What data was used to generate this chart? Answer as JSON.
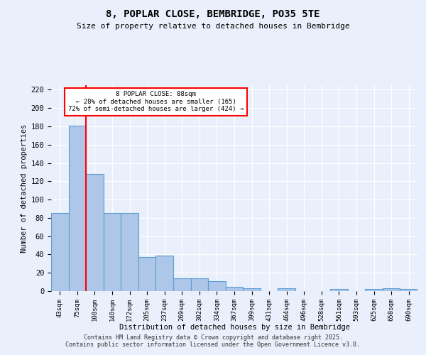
{
  "title": "8, POPLAR CLOSE, BEMBRIDGE, PO35 5TE",
  "subtitle": "Size of property relative to detached houses in Bembridge",
  "xlabel": "Distribution of detached houses by size in Bembridge",
  "ylabel": "Number of detached properties",
  "categories": [
    "43sqm",
    "75sqm",
    "108sqm",
    "140sqm",
    "172sqm",
    "205sqm",
    "237sqm",
    "269sqm",
    "302sqm",
    "334sqm",
    "367sqm",
    "399sqm",
    "431sqm",
    "464sqm",
    "496sqm",
    "528sqm",
    "561sqm",
    "593sqm",
    "625sqm",
    "658sqm",
    "690sqm"
  ],
  "values": [
    85,
    181,
    128,
    85,
    85,
    37,
    39,
    14,
    14,
    11,
    5,
    3,
    0,
    3,
    0,
    0,
    2,
    0,
    2,
    3,
    2
  ],
  "bar_color": "#aec6e8",
  "bar_edge_color": "#5a9fd4",
  "vline_x_index": 1,
  "vline_color": "red",
  "annotation_text": "8 POPLAR CLOSE: 88sqm\n← 28% of detached houses are smaller (165)\n72% of semi-detached houses are larger (424) →",
  "annotation_box_color": "white",
  "annotation_box_edge_color": "red",
  "ylim": [
    0,
    225
  ],
  "yticks": [
    0,
    20,
    40,
    60,
    80,
    100,
    120,
    140,
    160,
    180,
    200,
    220
  ],
  "bg_color": "#eaf0fb",
  "grid_color": "white",
  "footer": "Contains HM Land Registry data © Crown copyright and database right 2025.\nContains public sector information licensed under the Open Government Licence v3.0."
}
